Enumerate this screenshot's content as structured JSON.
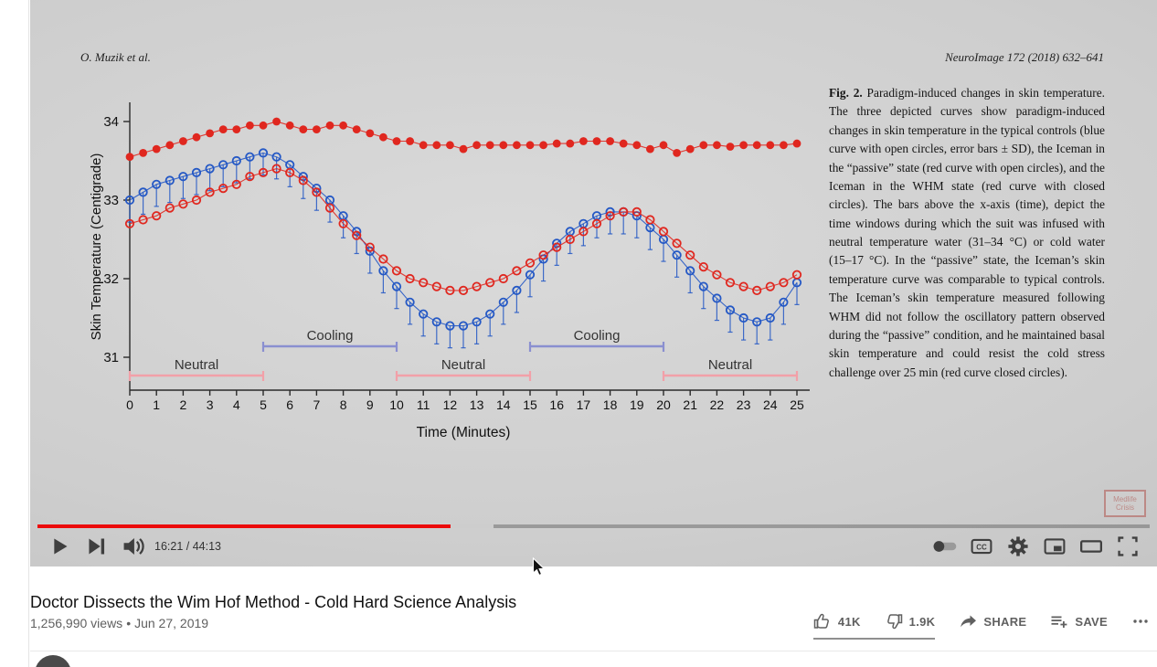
{
  "player": {
    "time_display": "16:21 / 44:13",
    "progress_percent": 37.1,
    "buffered_percent": 41,
    "captions_label": "CC"
  },
  "paper": {
    "author_header": "O. Muzik et al.",
    "journal_header": "NeuroImage 172 (2018) 632–641",
    "caption_lead": "Fig. 2.",
    "caption_body": " Paradigm-induced changes in skin temperature. The three depicted curves show paradigm-induced changes in skin temperature in the typical controls (blue curve with open circles, error bars ± SD), the Iceman in the “passive” state (red curve with open circles), and the Iceman in the WHM state (red curve with closed circles). The bars above the x-axis (time), depict the time windows during which the suit was infused with neutral temperature water (31–34 °C) or cold water (15–17 °C). In the “passive” state, the Iceman’s skin temperature curve was comparable to typical controls. The Iceman’s skin temperature measured following WHM did not follow the oscillatory pattern observed during the “passive” condition, and he maintained basal skin temperature and could resist the cold stress challenge over 25 min (red curve closed circles).",
    "watermark": {
      "line1": "Medlife",
      "line2": "Crisis"
    }
  },
  "page": {
    "title": "Doctor Dissects the Wim Hof Method - Cold Hard Science Analysis",
    "views": "1,256,990 views",
    "separator": "•",
    "date": "Jun 27, 2019",
    "actions": {
      "like": "41K",
      "dislike": "1.9K",
      "share": "SHARE",
      "save": "SAVE"
    }
  },
  "chart_data": {
    "type": "scatter",
    "title": "",
    "xlabel": "Time (Minutes)",
    "ylabel": "Skin Temperature (Centigrade)",
    "xlim": [
      0,
      25
    ],
    "ylim": [
      30.8,
      34.4
    ],
    "x_ticks": [
      0,
      1,
      2,
      3,
      4,
      5,
      6,
      7,
      8,
      9,
      10,
      11,
      12,
      13,
      14,
      15,
      16,
      17,
      18,
      19,
      20,
      21,
      22,
      23,
      24,
      25
    ],
    "y_ticks": [
      31,
      32,
      33,
      34
    ],
    "grid": false,
    "legend": "none (described in caption)",
    "colors": {
      "cooling": "#8a8fd0",
      "neutral": "#f2a0a8"
    },
    "x": [
      0,
      0.5,
      1,
      1.5,
      2,
      2.5,
      3,
      3.5,
      4,
      4.5,
      5,
      5.5,
      6,
      6.5,
      7,
      7.5,
      8,
      8.5,
      9,
      9.5,
      10,
      10.5,
      11,
      11.5,
      12,
      12.5,
      13,
      13.5,
      14,
      14.5,
      15,
      15.5,
      16,
      16.5,
      17,
      17.5,
      18,
      18.5,
      19,
      19.5,
      20,
      20.5,
      21,
      21.5,
      22,
      22.5,
      23,
      23.5,
      24,
      24.5,
      25
    ],
    "series": [
      {
        "name": "Typical controls (blue curve, open circles, error bars ± SD)",
        "color": "#2458c5",
        "marker": "open",
        "sd": 0.28,
        "values": [
          33.0,
          33.1,
          33.2,
          33.25,
          33.3,
          33.35,
          33.4,
          33.45,
          33.5,
          33.55,
          33.6,
          33.55,
          33.45,
          33.3,
          33.15,
          33.0,
          32.8,
          32.6,
          32.35,
          32.1,
          31.9,
          31.7,
          31.55,
          31.45,
          31.4,
          31.4,
          31.45,
          31.55,
          31.7,
          31.85,
          32.05,
          32.25,
          32.45,
          32.6,
          32.7,
          32.8,
          32.85,
          32.85,
          32.8,
          32.65,
          32.5,
          32.3,
          32.1,
          31.9,
          31.75,
          31.6,
          31.5,
          31.45,
          31.5,
          31.7,
          31.95
        ]
      },
      {
        "name": "Iceman “passive” state (red curve, open circles)",
        "color": "#e0271f",
        "marker": "open",
        "sd": 0,
        "values": [
          32.7,
          32.75,
          32.8,
          32.9,
          32.95,
          33.0,
          33.1,
          33.15,
          33.2,
          33.3,
          33.35,
          33.4,
          33.35,
          33.25,
          33.1,
          32.9,
          32.7,
          32.55,
          32.4,
          32.25,
          32.1,
          32.0,
          31.95,
          31.9,
          31.85,
          31.85,
          31.9,
          31.95,
          32.0,
          32.1,
          32.2,
          32.3,
          32.4,
          32.5,
          32.6,
          32.7,
          32.8,
          32.85,
          32.85,
          32.75,
          32.6,
          32.45,
          32.3,
          32.15,
          32.05,
          31.95,
          31.9,
          31.85,
          31.9,
          31.95,
          32.05
        ]
      },
      {
        "name": "Iceman WHM state (red curve, closed circles)",
        "color": "#e0271f",
        "marker": "closed",
        "sd": 0,
        "values": [
          33.55,
          33.6,
          33.65,
          33.7,
          33.75,
          33.8,
          33.85,
          33.9,
          33.9,
          33.95,
          33.95,
          34.0,
          33.95,
          33.9,
          33.9,
          33.95,
          33.95,
          33.9,
          33.85,
          33.8,
          33.75,
          33.75,
          33.7,
          33.7,
          33.7,
          33.65,
          33.7,
          33.7,
          33.7,
          33.7,
          33.7,
          33.7,
          33.72,
          33.72,
          33.75,
          33.75,
          33.75,
          33.72,
          33.7,
          33.65,
          33.7,
          33.6,
          33.65,
          33.7,
          33.7,
          33.68,
          33.7,
          33.7,
          33.7,
          33.7,
          33.72
        ]
      }
    ],
    "stimulus_bars": [
      {
        "label": "Neutral",
        "start": 0,
        "end": 5,
        "row": "neutral"
      },
      {
        "label": "Cooling",
        "start": 5,
        "end": 10,
        "row": "cooling"
      },
      {
        "label": "Neutral",
        "start": 10,
        "end": 15,
        "row": "neutral"
      },
      {
        "label": "Cooling",
        "start": 15,
        "end": 20,
        "row": "cooling"
      },
      {
        "label": "Neutral",
        "start": 20,
        "end": 25,
        "row": "neutral"
      }
    ]
  }
}
